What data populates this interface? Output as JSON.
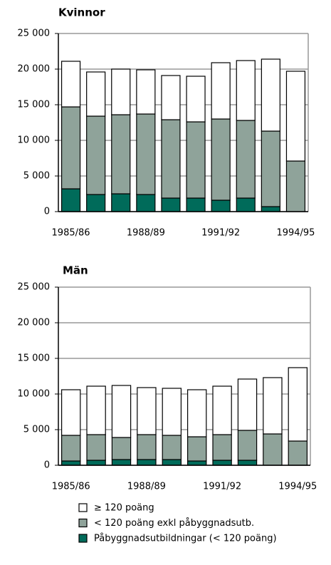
{
  "chart_data": [
    {
      "type": "stacked_bar",
      "title": "Kvinnor",
      "categories": [
        "1985/86",
        null,
        null,
        "1988/89",
        null,
        null,
        "1991/92",
        null,
        null,
        "1994/95"
      ],
      "series": [
        {
          "name": "Påbyggnadsutbildningar (< 120 poäng)",
          "color": "#006b5a",
          "values": [
            3200,
            2400,
            2500,
            2400,
            1900,
            1900,
            1600,
            1900,
            700,
            0
          ]
        },
        {
          "name": "< 120 poäng exkl påbyggnadsutb.",
          "color": "#8fa39a",
          "values": [
            11500,
            11000,
            11100,
            11300,
            11000,
            10700,
            11400,
            10900,
            10600,
            7100
          ]
        },
        {
          "name": "≥ 120 poäng",
          "color": "#ffffff",
          "values": [
            6400,
            6200,
            6400,
            6200,
            6200,
            6400,
            7900,
            8400,
            10100,
            12600
          ]
        }
      ],
      "ylim": [
        0,
        25000
      ],
      "yticks": [
        0,
        {
          "value": 5000,
          "label": "5 000"
        },
        {
          "value": 10000,
          "label": "10 000"
        },
        {
          "value": 15000,
          "label": "15 000"
        },
        {
          "value": 20000,
          "label": "20 000"
        },
        {
          "value": 25000,
          "label": "25 000"
        }
      ],
      "grid": true
    },
    {
      "type": "stacked_bar",
      "title": "Män",
      "categories": [
        "1985/86",
        null,
        null,
        "1988/89",
        null,
        null,
        "1991/92",
        null,
        null,
        "1994/95"
      ],
      "series": [
        {
          "color": "#006b5a",
          "values": [
            600,
            700,
            800,
            800,
            800,
            600,
            700,
            700,
            0,
            0
          ]
        },
        {
          "color": "#8fa39a",
          "values": [
            3600,
            3600,
            3100,
            3500,
            3400,
            3400,
            3600,
            4200,
            4400,
            3400
          ]
        },
        {
          "color": "#ffffff",
          "values": [
            6400,
            6800,
            7300,
            6600,
            6600,
            6600,
            6800,
            7200,
            7900,
            10300
          ]
        }
      ],
      "ylim": [
        0,
        25000
      ],
      "yticks": [
        0,
        {
          "value": 5000,
          "label": "5 000"
        },
        {
          "value": 10000,
          "label": "10 000"
        },
        {
          "value": 15000,
          "label": "15 000"
        },
        {
          "value": 20000,
          "label": "20 000"
        },
        {
          "value": 25000,
          "label": "25 000"
        }
      ],
      "grid": true
    }
  ]
}
